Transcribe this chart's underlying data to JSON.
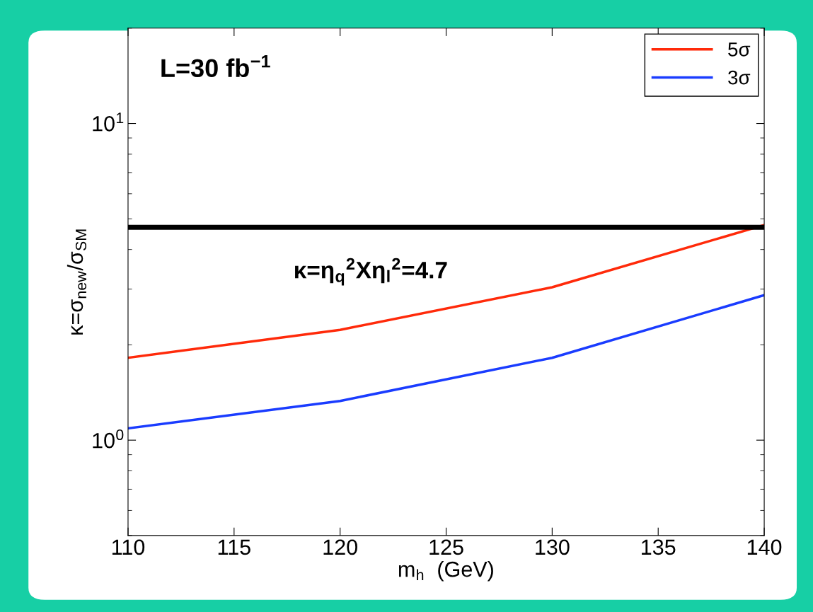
{
  "chart_data": {
    "type": "line",
    "xlabel": "m$_{h}$  (GeV)",
    "ylabel": "κ=σ$_{new}$/σ$_{SM}$",
    "x": [
      110,
      120,
      130,
      140
    ],
    "series": [
      {
        "name": "5σ",
        "color": "#ff2a0a",
        "values": [
          1.82,
          2.23,
          3.04,
          4.78
        ]
      },
      {
        "name": "3σ",
        "color": "#1a3cff",
        "values": [
          1.09,
          1.33,
          1.82,
          2.87
        ]
      }
    ],
    "log": "y",
    "xlim": [
      110,
      140
    ],
    "xticks": [
      110,
      115,
      120,
      125,
      130,
      135,
      140
    ],
    "ylim": [
      0.5,
      20
    ],
    "yticks": [
      {
        "value": 1,
        "label": "10$^{0}$"
      },
      {
        "value": 10,
        "label": "10$^{1}$"
      }
    ],
    "ref_lines": [
      {
        "axis": "y",
        "value": 4.7,
        "label": "κ=η$_{q}$$^{2}$Xη$_{l}$$^{2}$=4.7",
        "color": "#000000"
      }
    ],
    "annotations": [
      "L=30 fb$^{−1}$"
    ],
    "legend": "top right",
    "grid": false,
    "marker": "none",
    "line_style": "solid"
  }
}
